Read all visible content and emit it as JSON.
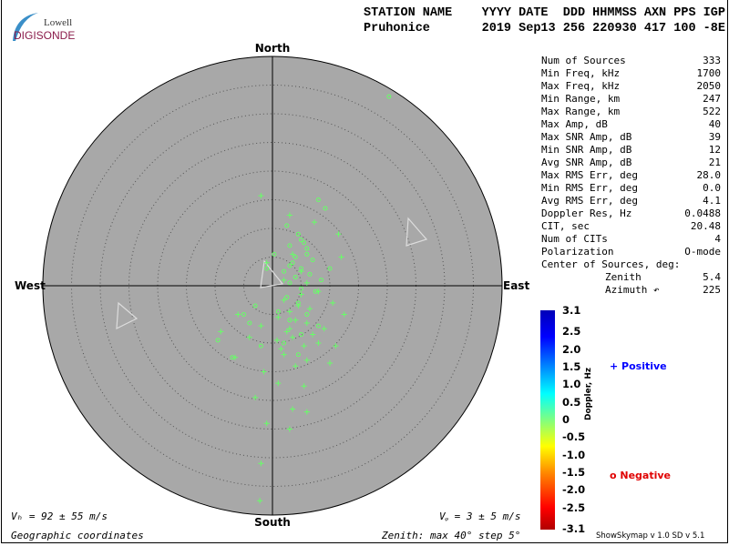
{
  "logo": {
    "top": "Lowell",
    "bottom": "DIGISONDE"
  },
  "header": {
    "line1": "STATION NAME    YYYY DATE  DDD HHMMSS AXN PPS IGP",
    "line2": "Pruhonice       2019 Sep13 256 220930 417 100 -8E"
  },
  "stats": [
    {
      "label": "Num of Sources",
      "value": "333"
    },
    {
      "label": "Min Freq, kHz",
      "value": "1700"
    },
    {
      "label": "Max Freq, kHz",
      "value": "2050"
    },
    {
      "label": "Min Range, km",
      "value": "247"
    },
    {
      "label": "Max Range, km",
      "value": "522"
    },
    {
      "label": "Max Amp, dB",
      "value": "40"
    },
    {
      "label": "Max SNR Amp, dB",
      "value": "39"
    },
    {
      "label": "Min SNR Amp, dB",
      "value": "12"
    },
    {
      "label": "Avg SNR Amp, dB",
      "value": "21"
    },
    {
      "label": "Max RMS Err, deg",
      "value": "28.0"
    },
    {
      "label": "Min RMS Err, deg",
      "value": "0.0"
    },
    {
      "label": "Avg RMS Err, deg",
      "value": "4.1"
    },
    {
      "label": "Doppler Res, Hz",
      "value": "0.0488"
    },
    {
      "label": "CIT, sec",
      "value": "20.48"
    },
    {
      "label": "Num of CITs",
      "value": "4"
    },
    {
      "label": "Polarization",
      "value": "O-mode"
    },
    {
      "label": "Center of Sources, deg:",
      "value": ""
    },
    {
      "label": "Zenith",
      "value": "5.4"
    },
    {
      "label": "Azimuth ↶",
      "value": "225"
    }
  ],
  "footer": {
    "vh": "Vₕ = 92 ± 55 m/s",
    "vz": "Vᵩ = 3 ± 5 m/s",
    "coords": "Geographic coordinates",
    "zenith": "Zenith: max 40°  step 5°",
    "version": "ShowSkymap v 1.0   SD v 5.1"
  },
  "chart_data": {
    "type": "scatter",
    "projection": "polar skymap",
    "directions": {
      "north": "North",
      "south": "South",
      "east": "East",
      "west": "West"
    },
    "zenith_max_deg": 40,
    "zenith_step_deg": 5,
    "grid": true,
    "colorbar": {
      "label": "Doppler, Hz",
      "ticks": [
        "3.1",
        "2.5",
        "2.0",
        "1.5",
        "1.0",
        "0.5",
        "0",
        "-0.5",
        "-1.0",
        "-1.5",
        "-2.0",
        "-2.5",
        "-3.1"
      ],
      "range": [
        -3.1,
        3.1
      ]
    },
    "legend": {
      "positive": "Positive",
      "negative": "Negative",
      "positive_color": "#0000ff",
      "negative_color": "#ff0000"
    },
    "point_color": "#66ff66",
    "point_units": "degrees east / north of zenith",
    "positive_points": [
      [
        -2,
        15.7
      ],
      [
        3,
        12.3
      ],
      [
        7.3,
        11.1
      ],
      [
        -1,
        4
      ],
      [
        11.5,
        9
      ],
      [
        12,
        5
      ],
      [
        3.5,
        5.5
      ],
      [
        5,
        2.5
      ],
      [
        8,
        -1
      ],
      [
        10.5,
        -3
      ],
      [
        12.5,
        -5
      ],
      [
        -6,
        -5
      ],
      [
        -2,
        -7
      ],
      [
        1,
        -5.5
      ],
      [
        3,
        -7.5
      ],
      [
        6,
        -6.5
      ],
      [
        9,
        -7.5
      ],
      [
        0.8,
        -9.5
      ],
      [
        3.5,
        -9
      ],
      [
        8,
        -10
      ],
      [
        11,
        -10.5
      ],
      [
        -6.5,
        -12.5
      ],
      [
        2,
        -12
      ],
      [
        6,
        -13
      ],
      [
        10,
        -13.5
      ],
      [
        -1.5,
        -15
      ],
      [
        -3,
        -19.5
      ],
      [
        1,
        -17
      ],
      [
        5.5,
        -17.5
      ],
      [
        3.5,
        -21.5
      ],
      [
        6,
        -22
      ],
      [
        3,
        -25
      ],
      [
        -2,
        -31
      ],
      [
        -2.2,
        -37.5
      ],
      [
        -1,
        -24
      ],
      [
        4.5,
        -3.5
      ],
      [
        6.5,
        -4
      ],
      [
        2,
        -2.5
      ],
      [
        5,
        -1.5
      ],
      [
        3,
        -4.5
      ],
      [
        4,
        -6
      ],
      [
        2.5,
        -8
      ],
      [
        5.5,
        -10.5
      ],
      [
        1.5,
        -11
      ],
      [
        7,
        -8.5
      ],
      [
        4,
        -14
      ],
      [
        2,
        1
      ],
      [
        6,
        0.5
      ],
      [
        -9,
        -8
      ],
      [
        -4,
        -9
      ]
    ],
    "negative_points": [
      [
        20.3,
        33
      ],
      [
        8,
        15
      ],
      [
        9.2,
        13.5
      ],
      [
        2.5,
        10.5
      ],
      [
        4.5,
        9
      ],
      [
        5.5,
        7.5
      ],
      [
        3,
        7
      ],
      [
        6,
        6.5
      ],
      [
        4,
        5
      ],
      [
        7,
        4.5
      ],
      [
        3.5,
        4
      ],
      [
        5,
        3
      ],
      [
        2,
        2.5
      ],
      [
        6.5,
        2
      ],
      [
        4,
        1.5
      ],
      [
        8.5,
        1
      ],
      [
        3,
        0.5
      ],
      [
        5,
        -0.5
      ],
      [
        7.5,
        -1
      ],
      [
        2.5,
        -2
      ],
      [
        4.5,
        -3
      ],
      [
        -9.5,
        -9.5
      ],
      [
        -7,
        -12.5
      ],
      [
        1,
        -4.5
      ],
      [
        -3,
        -3.5
      ],
      [
        6,
        -5
      ],
      [
        3,
        -6
      ],
      [
        -4,
        -6.5
      ],
      [
        8,
        -7
      ],
      [
        5,
        -8.5
      ],
      [
        2,
        -10
      ],
      [
        -2,
        -10.5
      ],
      [
        4.5,
        -12
      ],
      [
        -5,
        -5
      ],
      [
        10,
        3
      ],
      [
        0.3,
        5.5
      ],
      [
        -1,
        3
      ],
      [
        5,
        8
      ],
      [
        3,
        3.5
      ],
      [
        6,
        5.5
      ]
    ]
  }
}
